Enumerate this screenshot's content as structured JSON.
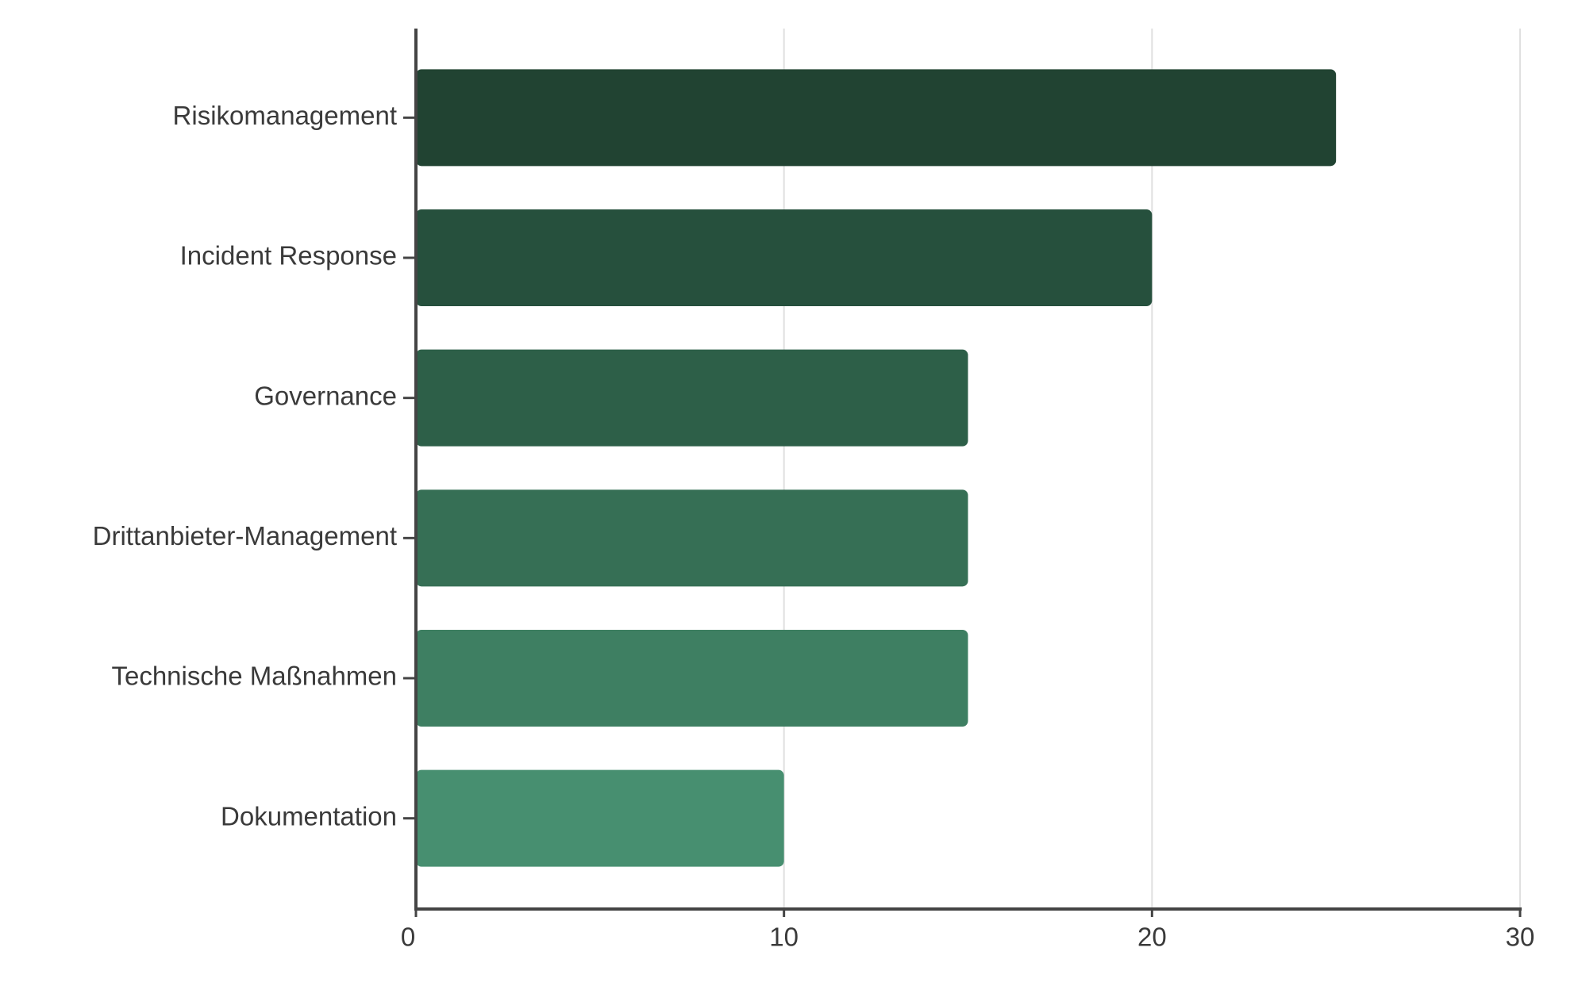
{
  "chart_data": {
    "type": "bar",
    "orientation": "horizontal",
    "categories": [
      "Risikomanagement",
      "Incident Response",
      "Governance",
      "Drittanbieter-Management",
      "Technische Maßnahmen",
      "Dokumentation"
    ],
    "values": [
      25,
      20,
      15,
      15,
      15,
      10
    ],
    "colors": [
      "#214332",
      "#26503d",
      "#2d5f48",
      "#366f55",
      "#3e7f62",
      "#478f70"
    ],
    "xlim": [
      0,
      30
    ],
    "xticks": [
      0,
      10,
      20,
      30
    ],
    "grid": true
  }
}
